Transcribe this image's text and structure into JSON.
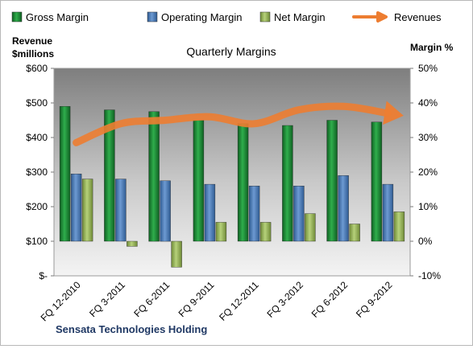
{
  "chart_data": {
    "type": "bar",
    "title": "Quarterly Margins",
    "company": "Sensata Technologies Holding",
    "categories": [
      "FQ 12-2010",
      "FQ 3-2011",
      "FQ 6-2011",
      "FQ 9-2011",
      "FQ 12-2011",
      "FQ 3-2012",
      "FQ 6-2012",
      "FQ 9-2012"
    ],
    "series": [
      {
        "name": "Gross Margin",
        "axis": "right",
        "color": "#1e8a3a",
        "values": [
          39,
          38,
          37.5,
          35,
          34,
          33.5,
          35,
          34.5
        ]
      },
      {
        "name": "Operating Margin",
        "axis": "right",
        "color": "#4f81bd",
        "values": [
          19.5,
          18,
          17.5,
          16.5,
          16,
          16,
          19,
          16.5
        ]
      },
      {
        "name": "Net Margin",
        "axis": "right",
        "color": "#9bbb59",
        "values": [
          18,
          -1.5,
          -7.5,
          5.5,
          5.5,
          8,
          5,
          8.5
        ]
      }
    ],
    "line_series": {
      "name": "Revenues",
      "axis": "left",
      "color": "#ed7d31",
      "values": [
        385,
        440,
        450,
        460,
        440,
        480,
        490,
        470
      ]
    },
    "y_left": {
      "label_line1": "Revenue",
      "label_line2": "$millions",
      "min": 0,
      "max": 600,
      "ticks": [
        0,
        100,
        200,
        300,
        400,
        500,
        600
      ],
      "tick_labels": [
        "$-",
        "$100",
        "$200",
        "$300",
        "$400",
        "$500",
        "$600"
      ]
    },
    "y_right": {
      "label": "Margin %",
      "min": -10,
      "max": 50,
      "ticks": [
        -10,
        0,
        10,
        20,
        30,
        40,
        50
      ],
      "tick_labels": [
        "-10%",
        "0%",
        "10%",
        "20%",
        "30%",
        "40%",
        "50%"
      ]
    },
    "legend_position": "top",
    "grid": false
  }
}
